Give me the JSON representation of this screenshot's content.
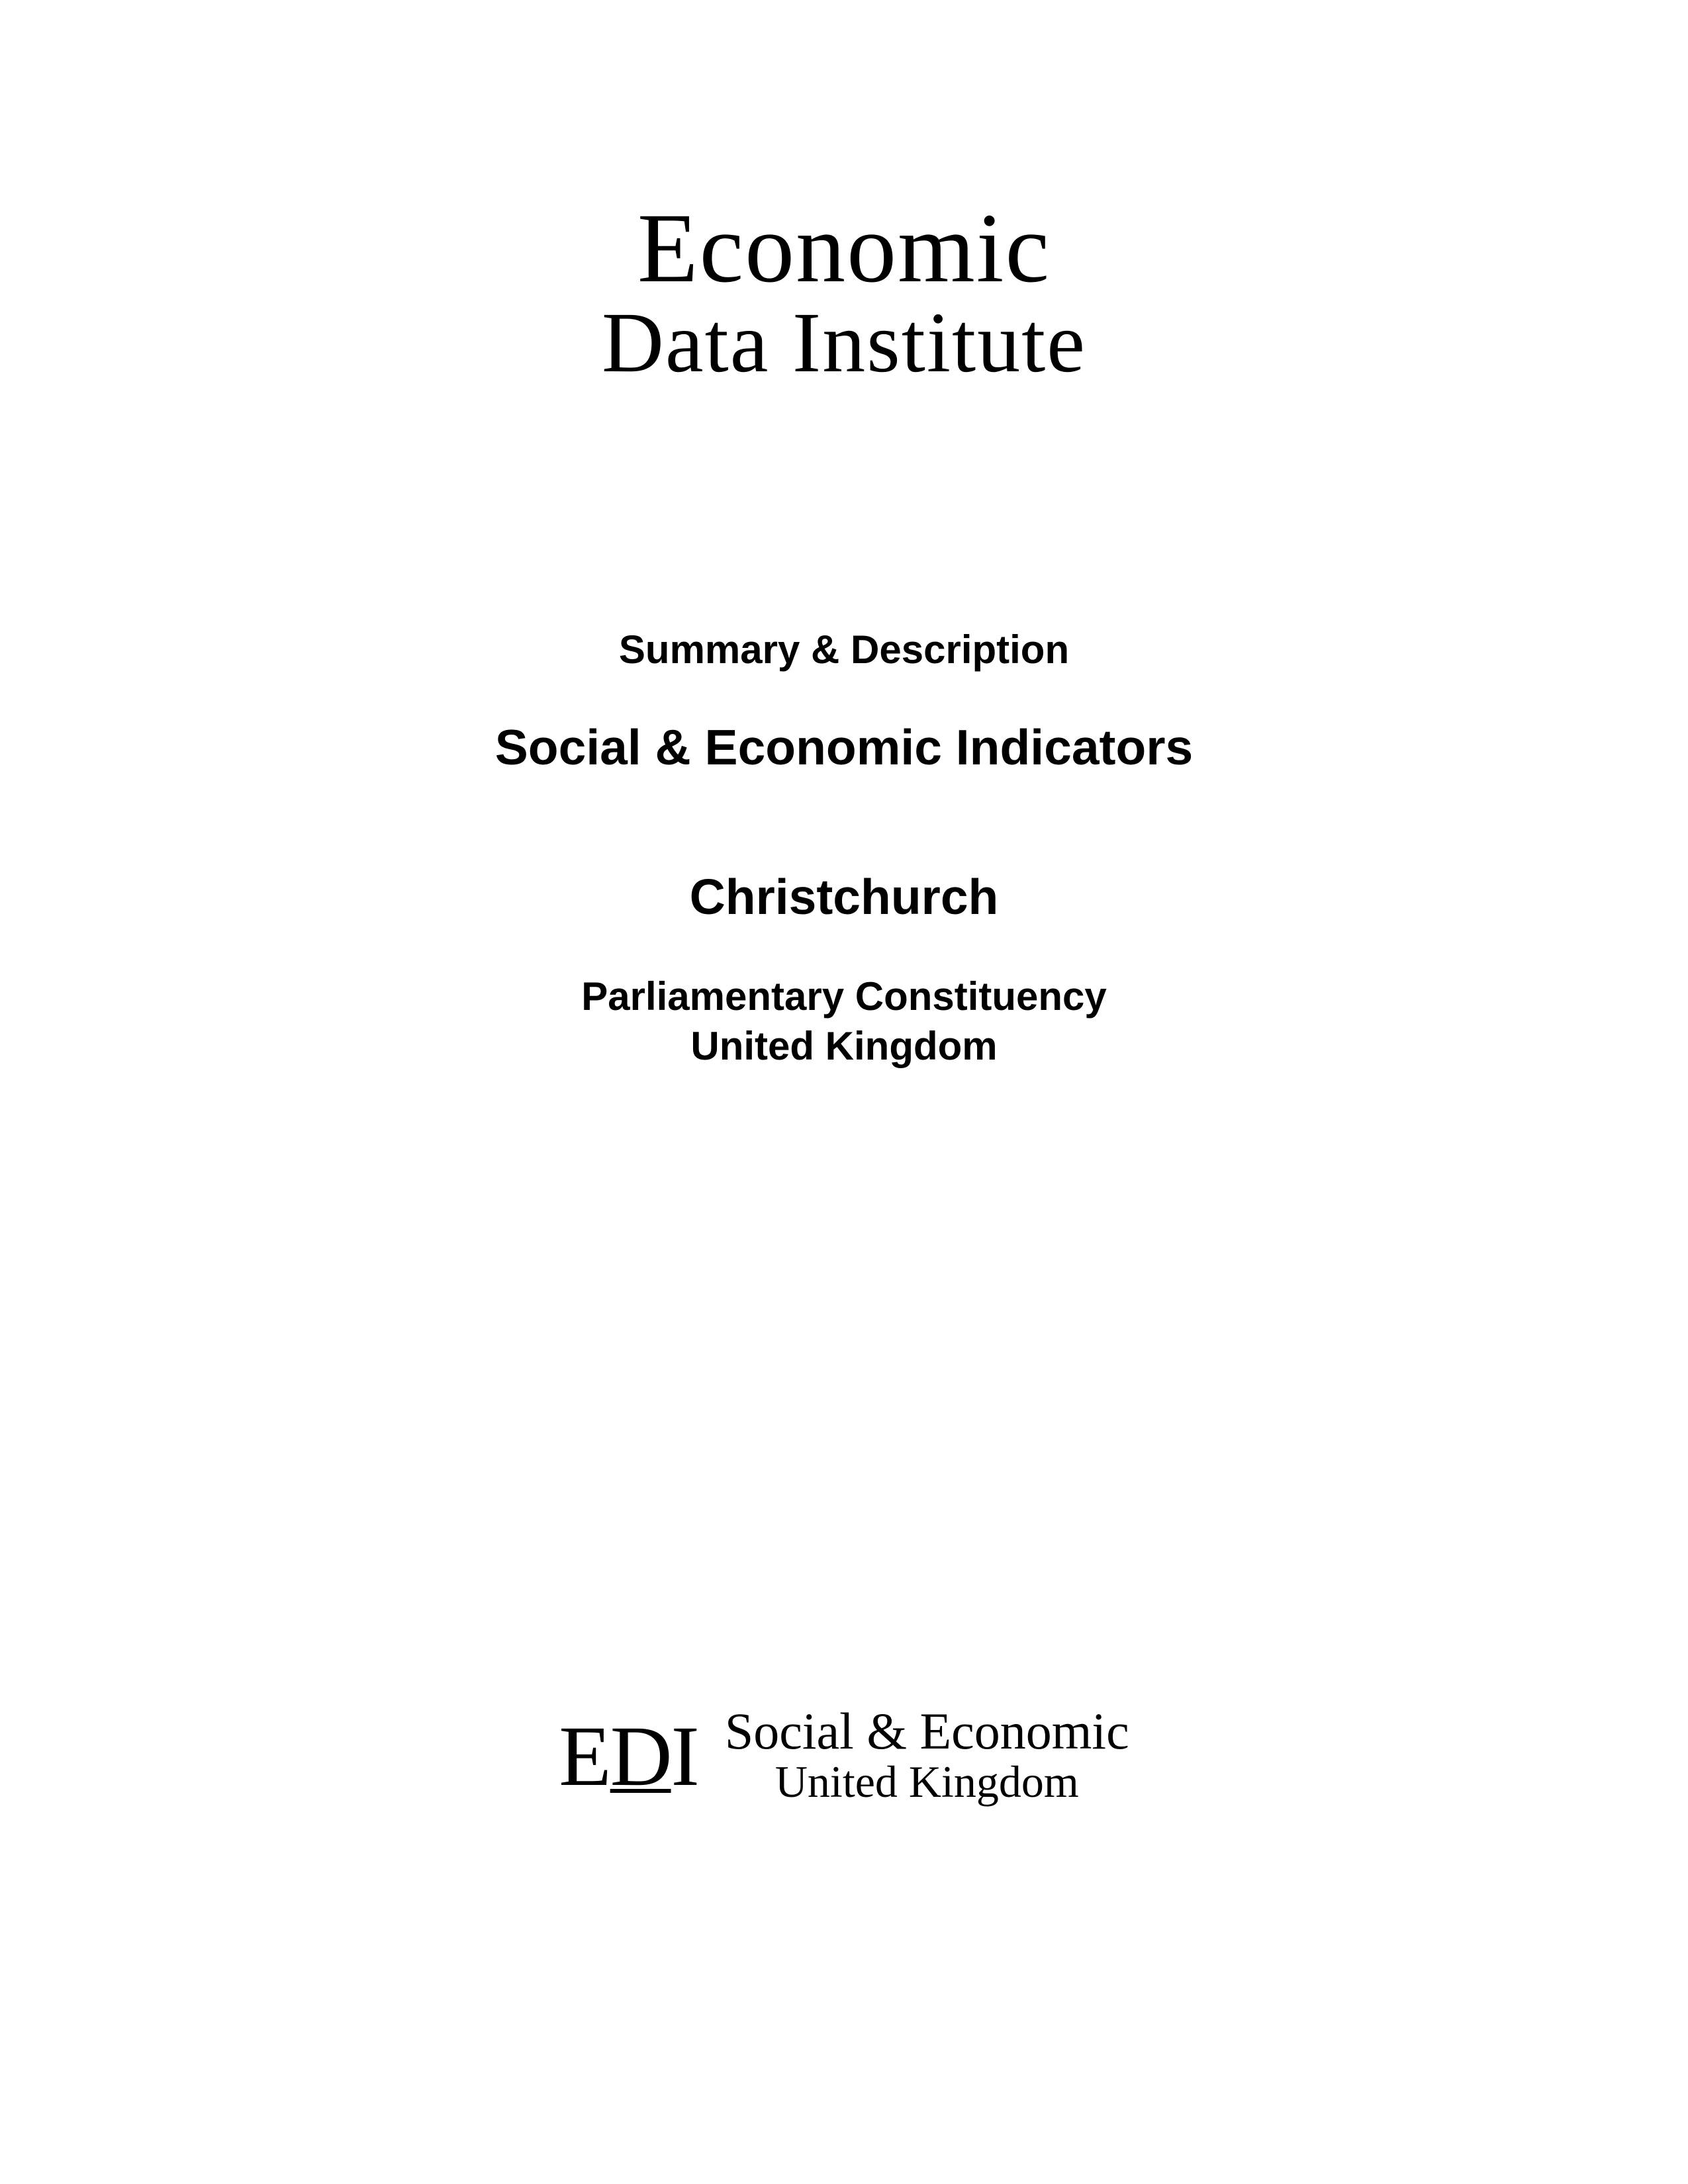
{
  "mainLogo": {
    "line1": "Economic",
    "line2": "Data Institute"
  },
  "subtitle": {
    "summaryLine": "Summary & Description",
    "titleLine": "Social & Economic Indicators",
    "locationLine": "Christchurch",
    "constituencyLine1": "Parliamentary Constituency",
    "constituencyLine2": "United Kingdom"
  },
  "footerLogo": {
    "mark": {
      "e": "E",
      "d": "D",
      "i": "I"
    },
    "line1": "Social & Economic",
    "line2": "United Kingdom"
  },
  "styling": {
    "pageWidth": 2550,
    "pageHeight": 3300,
    "backgroundColor": "#ffffff",
    "textColor": "#000000",
    "mainLogoFontFamily": "Georgia, Times New Roman, serif",
    "subtitleFontFamily": "Arial, Helvetica, sans-serif",
    "mainLogoLine1FontSize": 150,
    "mainLogoLine2FontSize": 130,
    "summaryFontSize": 60,
    "titleFontSize": 75,
    "locationFontSize": 75,
    "constituencyFontSize": 60,
    "ediMarkFontSize": 130,
    "footerLine1FontSize": 78,
    "footerLine2FontSize": 68
  }
}
